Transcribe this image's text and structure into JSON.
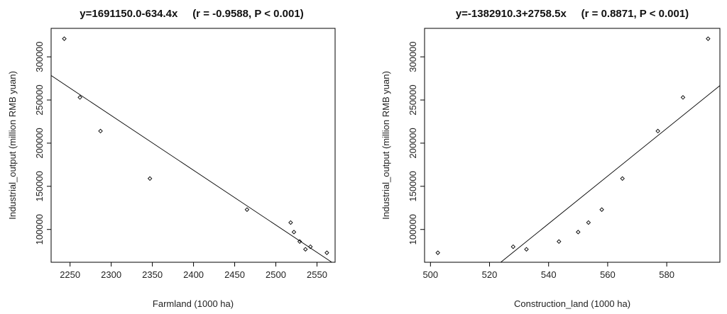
{
  "chart_data": [
    {
      "type": "scatter",
      "title": "y=1691150.0-634.4x     (r = -0.9588, P < 0.001)",
      "xlabel": "Farmland (1000 ha)",
      "ylabel": "Industrial_output (million RMB yuan)",
      "xlim": [
        2227,
        2572
      ],
      "ylim": [
        62000,
        333000
      ],
      "xticks": [
        2250,
        2300,
        2350,
        2400,
        2450,
        2500,
        2550
      ],
      "yticks": [
        100000,
        150000,
        200000,
        250000,
        300000
      ],
      "grid": false,
      "points": [
        {
          "x": 2243,
          "y": 321000
        },
        {
          "x": 2262,
          "y": 253000
        },
        {
          "x": 2287,
          "y": 214000
        },
        {
          "x": 2347,
          "y": 159000
        },
        {
          "x": 2465,
          "y": 123000
        },
        {
          "x": 2518,
          "y": 108000
        },
        {
          "x": 2522,
          "y": 97000
        },
        {
          "x": 2529,
          "y": 86000
        },
        {
          "x": 2536,
          "y": 77000
        },
        {
          "x": 2542,
          "y": 80000
        },
        {
          "x": 2562,
          "y": 73000
        }
      ],
      "fit_line": {
        "intercept": 1691150.0,
        "slope": -634.4
      }
    },
    {
      "type": "scatter",
      "title": "y=-1382910.3+2758.5x     (r = 0.8871, P < 0.001)",
      "xlabel": "Construction_land (1000 ha)",
      "ylabel": "Industrial_output (million RMB yuan)",
      "xlim": [
        498,
        598
      ],
      "ylim": [
        62000,
        333000
      ],
      "xticks": [
        500,
        520,
        540,
        560,
        580
      ],
      "yticks": [
        100000,
        150000,
        200000,
        250000,
        300000
      ],
      "grid": false,
      "points": [
        {
          "x": 502.5,
          "y": 73000
        },
        {
          "x": 528,
          "y": 80000
        },
        {
          "x": 532.5,
          "y": 77000
        },
        {
          "x": 543.5,
          "y": 86000
        },
        {
          "x": 550,
          "y": 97000
        },
        {
          "x": 553.5,
          "y": 108000
        },
        {
          "x": 558,
          "y": 123000
        },
        {
          "x": 565,
          "y": 159000
        },
        {
          "x": 577,
          "y": 214000
        },
        {
          "x": 585.5,
          "y": 253000
        },
        {
          "x": 594,
          "y": 321000
        }
      ],
      "fit_line": {
        "intercept": -1382910.3,
        "slope": 2758.5
      }
    }
  ]
}
